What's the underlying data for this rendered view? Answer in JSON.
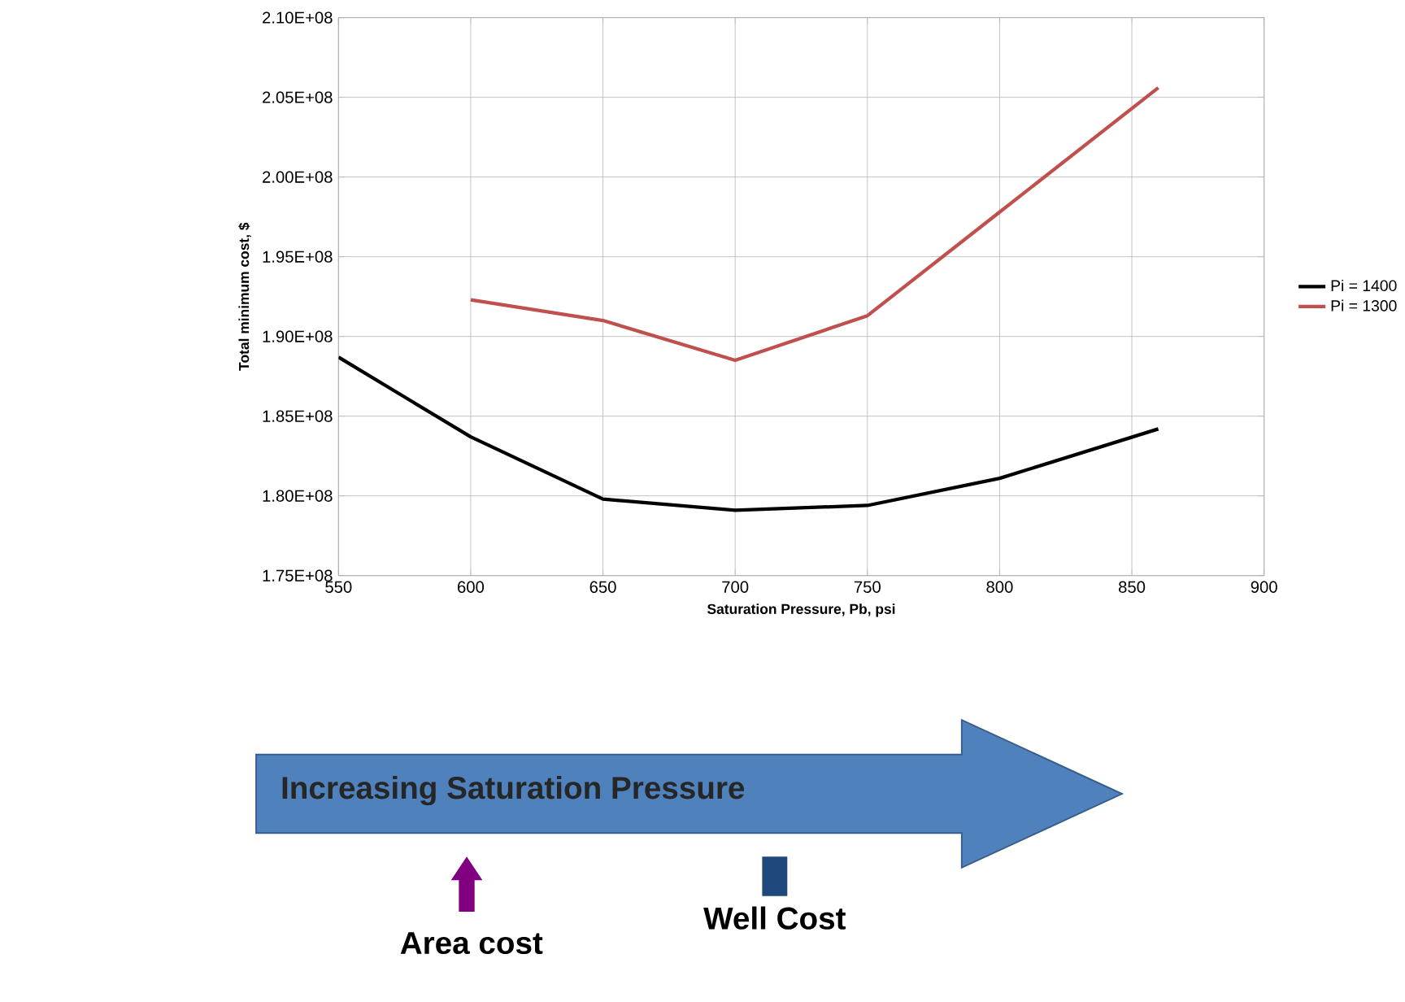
{
  "chart_data": {
    "type": "line",
    "xlabel": "Saturation Pressure, Pb, psi",
    "ylabel": "Total minimum cost, $",
    "xlim": [
      550,
      900
    ],
    "xticks": [
      550,
      600,
      650,
      700,
      750,
      800,
      850,
      900
    ],
    "ylim": [
      175000000,
      210000000
    ],
    "yticks": [
      {
        "value": 175000000,
        "label": "1.75E+08"
      },
      {
        "value": 180000000,
        "label": "1.80E+08"
      },
      {
        "value": 185000000,
        "label": "1.85E+08"
      },
      {
        "value": 190000000,
        "label": "1.90E+08"
      },
      {
        "value": 195000000,
        "label": "1.95E+08"
      },
      {
        "value": 200000000,
        "label": "2.00E+08"
      },
      {
        "value": 205000000,
        "label": "2.05E+08"
      },
      {
        "value": 210000000,
        "label": "2.10E+08"
      }
    ],
    "grid": true,
    "legend": "right",
    "series": [
      {
        "name": "Pi = 1400",
        "color": "#000000",
        "x": [
          550,
          600,
          650,
          700,
          750,
          800,
          860
        ],
        "values": [
          188700000,
          183700000,
          179800000,
          179100000,
          179400000,
          181100000,
          184200000
        ]
      },
      {
        "name": "Pi = 1300",
        "color": "#c0504d",
        "x": [
          600,
          650,
          700,
          750,
          800,
          860
        ],
        "values": [
          192300000,
          191000000,
          188500000,
          191300000,
          197800000,
          205600000
        ]
      }
    ],
    "annotations": [
      "Increasing Saturation Pressure",
      "Area cost",
      "Well Cost"
    ]
  }
}
